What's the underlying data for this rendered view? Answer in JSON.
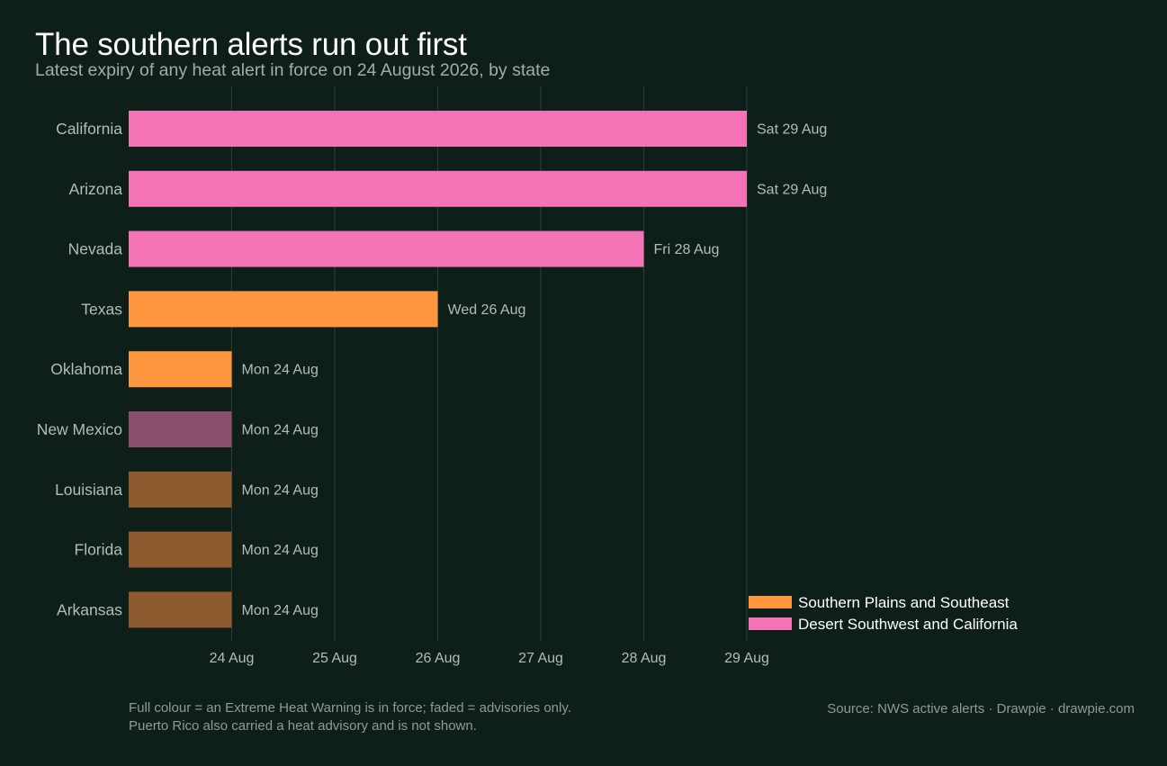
{
  "title": "The southern alerts run out first",
  "subtitle": "Latest expiry of any heat alert in force on 24 August 2026, by state",
  "footnotes": [
    "Full colour = an Extreme Heat Warning is in force; faded = advisories only.",
    "Puerto Rico also carried a heat advisory and is not shown."
  ],
  "source": "Source: NWS active alerts  ·  Drawpie · drawpie.com",
  "colors": {
    "background": "#0e1f1a",
    "southern": "#fd963f",
    "southern_faded": "#8d5b2d",
    "desert": "#f472b6",
    "desert_faded": "#8a4f6d",
    "gridline": "#2b3a35",
    "label": "#b3bcb8",
    "legend_text": "#ffffff"
  },
  "chart_data": {
    "type": "bar",
    "orientation": "horizontal",
    "x_axis": {
      "type": "date",
      "ticks": [
        "2026-08-24",
        "2026-08-25",
        "2026-08-26",
        "2026-08-27",
        "2026-08-28",
        "2026-08-29"
      ],
      "tick_labels": [
        "24 Aug",
        "25 Aug",
        "26 Aug",
        "27 Aug",
        "28 Aug",
        "29 Aug"
      ],
      "range": [
        "2026-08-23",
        "2026-08-29"
      ]
    },
    "grid": true,
    "legend": {
      "placement": "bottom-right",
      "entries": [
        {
          "label": "Southern Plains and Southeast",
          "color": "#fd963f"
        },
        {
          "label": "Desert Southwest and California",
          "color": "#f472b6"
        }
      ]
    },
    "bars": [
      {
        "state": "California",
        "expiry": "2026-08-29",
        "label": "Sat 29 Aug",
        "region": "Desert Southwest and California",
        "extreme_warning": true
      },
      {
        "state": "Arizona",
        "expiry": "2026-08-29",
        "label": "Sat 29 Aug",
        "region": "Desert Southwest and California",
        "extreme_warning": true
      },
      {
        "state": "Nevada",
        "expiry": "2026-08-28",
        "label": "Fri 28 Aug",
        "region": "Desert Southwest and California",
        "extreme_warning": true
      },
      {
        "state": "Texas",
        "expiry": "2026-08-26",
        "label": "Wed 26 Aug",
        "region": "Southern Plains and Southeast",
        "extreme_warning": true
      },
      {
        "state": "Oklahoma",
        "expiry": "2026-08-24",
        "label": "Mon 24 Aug",
        "region": "Southern Plains and Southeast",
        "extreme_warning": true
      },
      {
        "state": "New Mexico",
        "expiry": "2026-08-24",
        "label": "Mon 24 Aug",
        "region": "Desert Southwest and California",
        "extreme_warning": false
      },
      {
        "state": "Louisiana",
        "expiry": "2026-08-24",
        "label": "Mon 24 Aug",
        "region": "Southern Plains and Southeast",
        "extreme_warning": false
      },
      {
        "state": "Florida",
        "expiry": "2026-08-24",
        "label": "Mon 24 Aug",
        "region": "Southern Plains and Southeast",
        "extreme_warning": false
      },
      {
        "state": "Arkansas",
        "expiry": "2026-08-24",
        "label": "Mon 24 Aug",
        "region": "Southern Plains and Southeast",
        "extreme_warning": false
      }
    ]
  }
}
